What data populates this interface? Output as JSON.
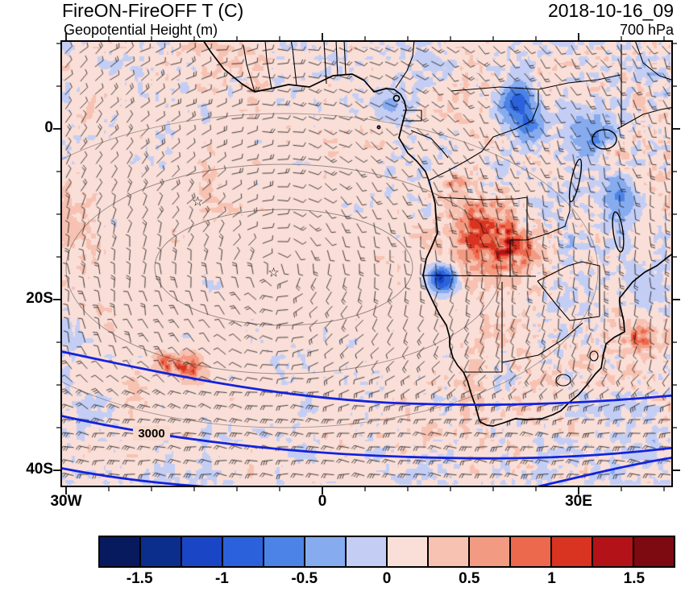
{
  "header": {
    "title": "FireON-FireOFF T (C)",
    "datetime": "2018-10-16_09",
    "subtitle": "Geopotential Height (m)",
    "level": "700 hPa"
  },
  "axes": {
    "y": [
      {
        "label": "0",
        "lat": 0
      },
      {
        "label": "20S",
        "lat": -20
      },
      {
        "label": "40S",
        "lat": -40
      }
    ],
    "x": [
      {
        "label": "30W",
        "lon": -30
      },
      {
        "label": "0",
        "lon": 0
      },
      {
        "label": "30E",
        "lon": 30
      }
    ]
  },
  "map": {
    "contour_label": "3000",
    "markers": [
      {
        "symbol": "☆",
        "lon": -14.6,
        "lat": -8.5
      },
      {
        "symbol": "☆",
        "lon": -5.7,
        "lat": -16.8
      }
    ]
  },
  "colorbar": {
    "colors": [
      "#071a5e",
      "#0b2e8c",
      "#1a46c6",
      "#2b62dc",
      "#4c83e6",
      "#87abef",
      "#c4cef4",
      "#fadfd8",
      "#f7c2b2",
      "#f29a82",
      "#ec694e",
      "#d93322",
      "#b21218",
      "#7c0a10"
    ],
    "labels": [
      "-1.5",
      "-1",
      "-0.5",
      "0",
      "0.5",
      "1",
      "1.5"
    ],
    "min": -1.75,
    "max": 1.75,
    "step": 0.25
  },
  "chart_data": {
    "type": "heatmap",
    "title": "FireON-FireOFF T (C)",
    "subtitle": "Geopotential Height (m)",
    "datetime": "2018-10-16_09",
    "pressure_level": "700 hPa",
    "x_axis": {
      "ticks": [
        "30W",
        "0",
        "30E"
      ],
      "lon_range": [
        -31,
        41
      ]
    },
    "y_axis": {
      "ticks": [
        "0",
        "20S",
        "40S"
      ],
      "lat_range": [
        -42,
        10.5
      ]
    },
    "colorbar_levels": [
      -1.75,
      -1.5,
      -1.25,
      -1,
      -0.75,
      -0.5,
      -0.25,
      0,
      0.25,
      0.5,
      0.75,
      1,
      1.25,
      1.5,
      1.75
    ],
    "colorbar_labeled_values": [
      -1.5,
      -1,
      -0.5,
      0,
      0.5,
      1,
      1.5
    ],
    "height_contour_labels": [
      "3000"
    ],
    "wind_barbs": true,
    "high_center_markers_lonlat": [
      [
        -14.6,
        -8.5
      ],
      [
        -5.7,
        -16.8
      ]
    ],
    "region": "South Atlantic / Southern Africa"
  }
}
